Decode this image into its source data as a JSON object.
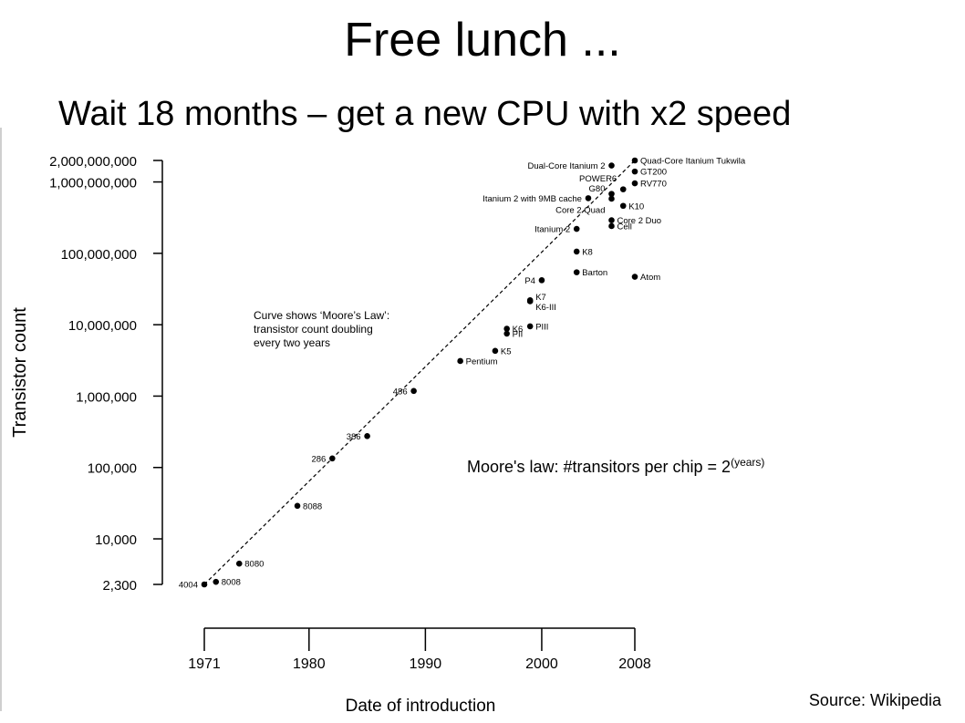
{
  "slide": {
    "title": "Free lunch ...",
    "subtitle": "Wait 18 months – get a new CPU with x2 speed",
    "formula_text": "Moore's law: #transitors per chip = 2",
    "formula_exponent": "(years)",
    "source": "Source: Wikipedia"
  },
  "chart_data": {
    "type": "scatter",
    "xlabel": "Date of introduction",
    "ylabel": "Transistor count",
    "y_scale": "log",
    "xlim": [
      1971,
      2008
    ],
    "ylim": [
      2300,
      2000000000
    ],
    "x_ticks": [
      1971,
      1980,
      1990,
      2000,
      2008
    ],
    "y_ticks": [
      {
        "value": 2300,
        "label": "2,300"
      },
      {
        "value": 10000,
        "label": "10,000"
      },
      {
        "value": 100000,
        "label": "100,000"
      },
      {
        "value": 1000000,
        "label": "1,000,000"
      },
      {
        "value": 10000000,
        "label": "10,000,000"
      },
      {
        "value": 100000000,
        "label": "100,000,000"
      },
      {
        "value": 1000000000,
        "label": "1,000,000,000"
      },
      {
        "value": 2000000000,
        "label": "2,000,000,000"
      }
    ],
    "annotation": [
      "Curve shows ‘Moore’s Law’:",
      "transistor count doubling",
      "every two years"
    ],
    "trend_line": {
      "x": [
        1971,
        2008
      ],
      "y": [
        2300,
        2000000000
      ],
      "style": "dashed"
    },
    "points": [
      {
        "label": "4004",
        "x": 1971,
        "y": 2300,
        "label_side": "left"
      },
      {
        "label": "8008",
        "x": 1972,
        "y": 2500,
        "label_side": "right"
      },
      {
        "label": "8080",
        "x": 1974,
        "y": 4500,
        "label_side": "right"
      },
      {
        "label": "8088",
        "x": 1979,
        "y": 29000,
        "label_side": "right"
      },
      {
        "label": "286",
        "x": 1982,
        "y": 134000,
        "label_side": "left"
      },
      {
        "label": "386",
        "x": 1985,
        "y": 275000,
        "label_side": "left"
      },
      {
        "label": "486",
        "x": 1989,
        "y": 1180000,
        "label_side": "left"
      },
      {
        "label": "Pentium",
        "x": 1993,
        "y": 3100000,
        "label_side": "right"
      },
      {
        "label": "K5",
        "x": 1996,
        "y": 4300000,
        "label_side": "right"
      },
      {
        "label": "K6",
        "x": 1997,
        "y": 8800000,
        "label_side": "right"
      },
      {
        "label": "PII",
        "x": 1997,
        "y": 7500000,
        "label_side": "right"
      },
      {
        "label": "PIII",
        "x": 1999,
        "y": 9500000,
        "label_side": "right"
      },
      {
        "label": "K6-III",
        "x": 1999,
        "y": 21300000,
        "label_side": "right",
        "dy": 6
      },
      {
        "label": "K7",
        "x": 1999,
        "y": 22000000,
        "label_side": "right",
        "dy": -4
      },
      {
        "label": "P4",
        "x": 2000,
        "y": 42000000,
        "label_side": "left"
      },
      {
        "label": "Barton",
        "x": 2003,
        "y": 54300000,
        "label_side": "right"
      },
      {
        "label": "K8",
        "x": 2003,
        "y": 105900000,
        "label_side": "right"
      },
      {
        "label": "Itanium 2",
        "x": 2003,
        "y": 220000000,
        "label_side": "left"
      },
      {
        "label": "Core 2 Duo",
        "x": 2006,
        "y": 291000000,
        "label_side": "right"
      },
      {
        "label": "Cell",
        "x": 2006,
        "y": 241000000,
        "label_side": "right"
      },
      {
        "label": "Core 2 Quad",
        "x": 2006,
        "y": 582000000,
        "label_side": "left",
        "dy": 12
      },
      {
        "label": "Itanium 2 with 9MB cache",
        "x": 2004,
        "y": 592000000,
        "label_side": "left"
      },
      {
        "label": "G80",
        "x": 2006,
        "y": 681000000,
        "label_side": "left",
        "dy": -6
      },
      {
        "label": "POWER6",
        "x": 2007,
        "y": 789000000,
        "label_side": "left",
        "dy": -12
      },
      {
        "label": "K10",
        "x": 2007,
        "y": 463000000,
        "label_side": "right"
      },
      {
        "label": "Atom",
        "x": 2008,
        "y": 47000000,
        "label_side": "right"
      },
      {
        "label": "RV770",
        "x": 2008,
        "y": 956000000,
        "label_side": "right"
      },
      {
        "label": "GT200",
        "x": 2008,
        "y": 1400000000,
        "label_side": "right"
      },
      {
        "label": "Quad-Core Itanium Tukwila",
        "x": 2008,
        "y": 2000000000,
        "label_side": "right"
      },
      {
        "label": "Dual-Core Itanium 2",
        "x": 2006,
        "y": 1700000000,
        "label_side": "left"
      }
    ]
  }
}
